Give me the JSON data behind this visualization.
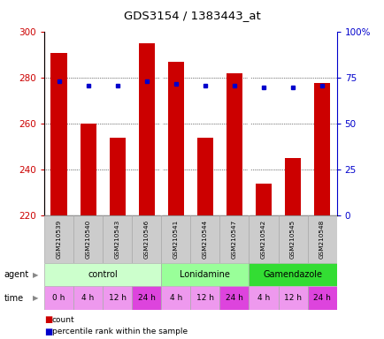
{
  "title": "GDS3154 / 1383443_at",
  "samples": [
    "GSM210539",
    "GSM210540",
    "GSM210543",
    "GSM210546",
    "GSM210541",
    "GSM210544",
    "GSM210547",
    "GSM210542",
    "GSM210545",
    "GSM210548"
  ],
  "counts": [
    291,
    260,
    254,
    295,
    287,
    254,
    282,
    234,
    245,
    278
  ],
  "percentiles": [
    73,
    71,
    71,
    73,
    72,
    71,
    71,
    70,
    70,
    71
  ],
  "ymin": 220,
  "ymax": 300,
  "yticks": [
    220,
    240,
    260,
    280,
    300
  ],
  "right_yticks": [
    0,
    25,
    50,
    75,
    100
  ],
  "right_ytick_labels": [
    "0",
    "25",
    "50",
    "75",
    "100%"
  ],
  "agents": [
    {
      "label": "control",
      "start": 0,
      "end": 4,
      "color": "#ccffcc"
    },
    {
      "label": "Lonidamine",
      "start": 4,
      "end": 7,
      "color": "#99ff99"
    },
    {
      "label": "Gamendazole",
      "start": 7,
      "end": 10,
      "color": "#33dd33"
    }
  ],
  "times": [
    "0 h",
    "4 h",
    "12 h",
    "24 h",
    "4 h",
    "12 h",
    "24 h",
    "4 h",
    "12 h",
    "24 h"
  ],
  "time_colors": [
    "#ee99ee",
    "#ee99ee",
    "#ee99ee",
    "#dd44dd",
    "#ee99ee",
    "#ee99ee",
    "#dd44dd",
    "#ee99ee",
    "#ee99ee",
    "#dd44dd"
  ],
  "bar_color": "#cc0000",
  "dot_color": "#0000cc",
  "bar_width": 0.55,
  "left_tick_color": "#cc0000",
  "right_tick_color": "#0000cc",
  "sample_bg": "#cccccc"
}
